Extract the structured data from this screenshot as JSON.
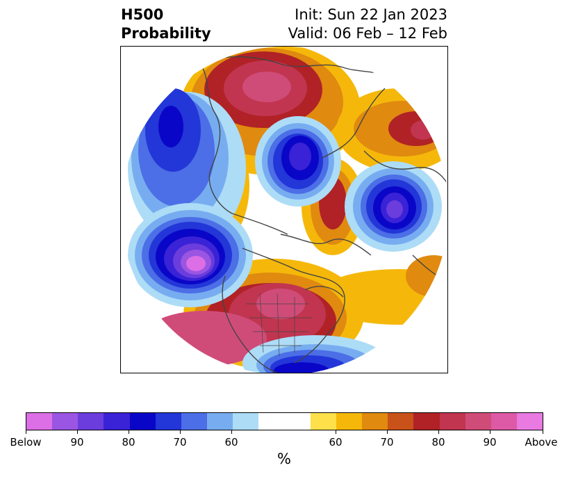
{
  "header": {
    "left_line1": "H500",
    "left_line2": "Probability",
    "right_line1": "Init: Sun 22 Jan 2023",
    "right_line2": "Valid: 06 Feb – 12 Feb"
  },
  "colorbar": {
    "colors": [
      "#dc6fe6",
      "#9a55e2",
      "#6a3ddc",
      "#3a22d6",
      "#0a06c8",
      "#2336d8",
      "#4c6ee6",
      "#77adf0",
      "#addcf7",
      "#ffffff",
      "#ffffff",
      "#fde04a",
      "#f5b80a",
      "#e08a10",
      "#c8521a",
      "#b02226",
      "#c13550",
      "#d04c78",
      "#dd5aa6",
      "#e97ae2"
    ],
    "labels": [
      "Below",
      "90",
      "80",
      "70",
      "60",
      "60",
      "70",
      "80",
      "90",
      "Above"
    ],
    "unit": "%"
  }
}
